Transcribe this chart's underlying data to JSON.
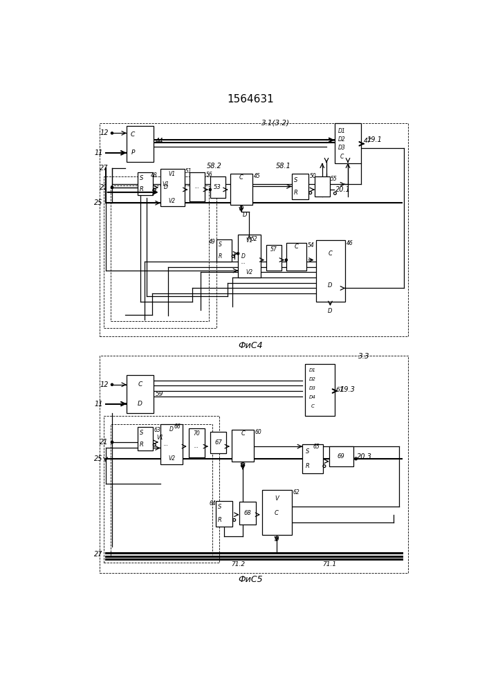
{
  "title": "1564631",
  "fig4_label": "ФиС4",
  "fig5_label": "ФиС5",
  "bg_color": "#ffffff"
}
